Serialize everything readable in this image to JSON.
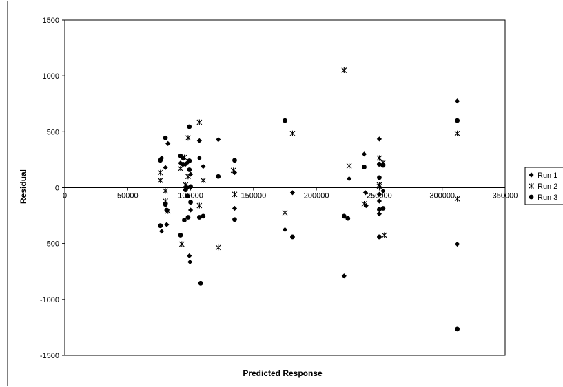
{
  "chart_data": {
    "type": "scatter",
    "xlabel": "Predicted Response",
    "ylabel": "Residual",
    "xlim": [
      0,
      350000
    ],
    "ylim": [
      -1500,
      1500
    ],
    "x_ticks": [
      0,
      50000,
      100000,
      150000,
      200000,
      250000,
      300000,
      350000
    ],
    "y_ticks": [
      -1500,
      -1000,
      -500,
      0,
      500,
      1000,
      1500
    ],
    "grid": false,
    "legend_position": "right",
    "series": [
      {
        "name": "Run 1",
        "marker": "diamond",
        "points": [
          [
            77000,
            265
          ],
          [
            77000,
            -390
          ],
          [
            80000,
            180
          ],
          [
            81000,
            -330
          ],
          [
            82000,
            395
          ],
          [
            92000,
            220
          ],
          [
            94000,
            260
          ],
          [
            96000,
            210
          ],
          [
            98000,
            230
          ],
          [
            99000,
            -610
          ],
          [
            99500,
            -665
          ],
          [
            100000,
            120
          ],
          [
            100000,
            -200
          ],
          [
            107000,
            265
          ],
          [
            107000,
            420
          ],
          [
            110000,
            190
          ],
          [
            122000,
            430
          ],
          [
            135000,
            135
          ],
          [
            135000,
            -185
          ],
          [
            175000,
            -375
          ],
          [
            181000,
            -45
          ],
          [
            222000,
            -790
          ],
          [
            226000,
            80
          ],
          [
            238000,
            300
          ],
          [
            239000,
            -45
          ],
          [
            239500,
            -160
          ],
          [
            250000,
            435
          ],
          [
            250000,
            210
          ],
          [
            250000,
            -60
          ],
          [
            250000,
            -120
          ],
          [
            250000,
            -235
          ],
          [
            253000,
            -30
          ],
          [
            312000,
            775
          ],
          [
            312000,
            -505
          ]
        ]
      },
      {
        "name": "Run 2",
        "marker": "asterisk",
        "points": [
          [
            76000,
            135
          ],
          [
            76000,
            65
          ],
          [
            80000,
            -30
          ],
          [
            80000,
            -120
          ],
          [
            82000,
            -210
          ],
          [
            92000,
            170
          ],
          [
            93000,
            -505
          ],
          [
            95000,
            270
          ],
          [
            96000,
            25
          ],
          [
            98000,
            100
          ],
          [
            98000,
            445
          ],
          [
            107000,
            585
          ],
          [
            107000,
            -160
          ],
          [
            110000,
            65
          ],
          [
            122000,
            -535
          ],
          [
            134000,
            155
          ],
          [
            135000,
            -60
          ],
          [
            175000,
            -225
          ],
          [
            181000,
            485
          ],
          [
            222000,
            1050
          ],
          [
            226000,
            195
          ],
          [
            238000,
            -145
          ],
          [
            250000,
            265
          ],
          [
            250000,
            25
          ],
          [
            250000,
            10
          ],
          [
            253000,
            225
          ],
          [
            254000,
            -425
          ],
          [
            312000,
            485
          ],
          [
            312000,
            -100
          ]
        ]
      },
      {
        "name": "Run 3",
        "marker": "circle",
        "points": [
          [
            76000,
            245
          ],
          [
            76000,
            -340
          ],
          [
            80000,
            445
          ],
          [
            80000,
            -150
          ],
          [
            81000,
            -200
          ],
          [
            92000,
            285
          ],
          [
            92000,
            -425
          ],
          [
            94000,
            210
          ],
          [
            95000,
            -290
          ],
          [
            96000,
            -20
          ],
          [
            97000,
            0
          ],
          [
            97500,
            -75
          ],
          [
            98000,
            -265
          ],
          [
            99000,
            545
          ],
          [
            99000,
            160
          ],
          [
            99000,
            240
          ],
          [
            100000,
            10
          ],
          [
            100000,
            -130
          ],
          [
            107000,
            -265
          ],
          [
            108000,
            -855
          ],
          [
            110000,
            -255
          ],
          [
            122000,
            100
          ],
          [
            135000,
            245
          ],
          [
            135000,
            -285
          ],
          [
            175000,
            600
          ],
          [
            181000,
            -440
          ],
          [
            222000,
            -255
          ],
          [
            225000,
            -275
          ],
          [
            238000,
            185
          ],
          [
            250000,
            210
          ],
          [
            250000,
            90
          ],
          [
            250000,
            -195
          ],
          [
            250000,
            -440
          ],
          [
            253000,
            200
          ],
          [
            253000,
            -185
          ],
          [
            312000,
            600
          ],
          [
            312000,
            -1265
          ]
        ]
      }
    ]
  }
}
